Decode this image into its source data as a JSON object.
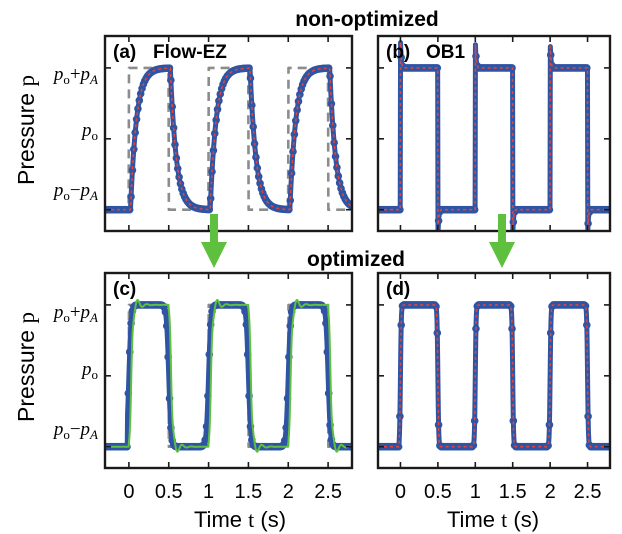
{
  "figure": {
    "top_title": "non-optimized",
    "middle_title": "optimized",
    "ylabel_text": "Pressure",
    "ylabel_var": "p",
    "xlabel_text": "Time",
    "xlabel_var": "t",
    "xlabel_unit": "(s)"
  },
  "y_ticks": {
    "top": {
      "base": "p",
      "sub1": "o",
      "op": "+",
      "var": "p",
      "sub2": "A"
    },
    "mid": {
      "base": "p",
      "sub1": "o"
    },
    "bottom": {
      "base": "p",
      "sub1": "o",
      "op": "−",
      "var": "p",
      "sub2": "A"
    }
  },
  "colors": {
    "measured": "#2f54a4",
    "fit": "#e0443c",
    "target": "#8c8c8c",
    "input": "#5fbf3f",
    "arrow": "#5fbf3f"
  },
  "chart_data": [
    {
      "panel": "(a)",
      "title": "Flow-EZ",
      "type": "line",
      "x_ticks": [
        "0",
        "0.5",
        "1",
        "1.5",
        "2",
        "2.5"
      ],
      "xlim": [
        -0.3,
        2.8
      ],
      "ylim": [
        -1.3,
        1.45
      ],
      "series": [
        {
          "values_desc": "measured",
          "response": "first_order",
          "tau": 0.075,
          "delay": 0.02
        },
        {
          "values_desc": "fit",
          "response": "first_order",
          "tau": 0.075,
          "delay": 0.02
        },
        {
          "values_desc": "target",
          "response": "square_wave",
          "low": -1,
          "high": 1,
          "period": 1.0,
          "duty": 0.5,
          "start": 0
        }
      ]
    },
    {
      "panel": "(b)",
      "title": "OB1",
      "type": "line",
      "x_ticks": [
        "0",
        "0.5",
        "1",
        "1.5",
        "2",
        "2.5"
      ],
      "xlim": [
        -0.3,
        2.8
      ],
      "ylim": [
        -1.3,
        1.45
      ],
      "series": [
        {
          "values_desc": "measured",
          "response": "overshoot_spikes"
        },
        {
          "values_desc": "fit",
          "response": "overshoot_spikes"
        }
      ]
    },
    {
      "panel": "(c)",
      "title": "",
      "type": "line",
      "x_ticks": [
        "0",
        "0.5",
        "1",
        "1.5",
        "2",
        "2.5"
      ],
      "xlim": [
        -0.3,
        2.8
      ],
      "ylim": [
        -1.3,
        1.45
      ],
      "series": [
        {
          "values_desc": "measured",
          "response": "optimized_fast"
        },
        {
          "values_desc": "input",
          "response": "ringing_overshoot"
        },
        {
          "values_desc": "target",
          "response": "square_wave",
          "low": -1,
          "high": 1,
          "period": 1.0,
          "duty": 0.5,
          "start": 0
        }
      ]
    },
    {
      "panel": "(d)",
      "title": "",
      "type": "line",
      "x_ticks": [
        "0",
        "0.5",
        "1",
        "1.5",
        "2",
        "2.5"
      ],
      "xlim": [
        -0.3,
        2.8
      ],
      "ylim": [
        -1.3,
        1.45
      ],
      "series": [
        {
          "values_desc": "measured",
          "response": "optimized_ideal"
        },
        {
          "values_desc": "fit",
          "response": "optimized_ideal"
        }
      ]
    }
  ]
}
